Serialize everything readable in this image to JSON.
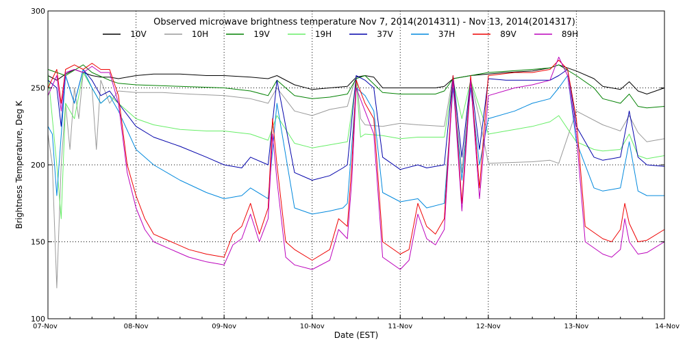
{
  "chart_data": {
    "type": "line",
    "title": "Observed microwave brightness temperature Nov  7, 2014(2014311) - Nov 13, 2014(2014317)",
    "xlabel": "Date (EST)",
    "ylabel": "Brightness Temperature, Deg K",
    "xlim": [
      0,
      7
    ],
    "ylim": [
      100,
      300
    ],
    "x_ticks": [
      {
        "value": 0,
        "label": "07-Nov"
      },
      {
        "value": 1,
        "label": "08-Nov"
      },
      {
        "value": 2,
        "label": "09-Nov"
      },
      {
        "value": 3,
        "label": "10-Nov"
      },
      {
        "value": 4,
        "label": "11-Nov"
      },
      {
        "value": 5,
        "label": "12-Nov"
      },
      {
        "value": 6,
        "label": "13-Nov"
      },
      {
        "value": 7,
        "label": "14-Nov"
      }
    ],
    "y_ticks": [
      100,
      150,
      200,
      250,
      300
    ],
    "grid": true,
    "legend_position": "top",
    "series": [
      {
        "name": "10V",
        "color": "#000000",
        "x": [
          0,
          0.1,
          0.2,
          0.3,
          0.4,
          0.5,
          0.6,
          0.7,
          0.8,
          1.0,
          1.2,
          1.5,
          1.8,
          2.0,
          2.3,
          2.5,
          2.6,
          2.8,
          3.0,
          3.2,
          3.4,
          3.5,
          3.6,
          3.7,
          3.8,
          4.0,
          4.2,
          4.4,
          4.5,
          4.6,
          4.8,
          5.0,
          5.2,
          5.5,
          5.7,
          5.8,
          6.0,
          6.2,
          6.3,
          6.5,
          6.6,
          6.7,
          6.8,
          7.0
        ],
        "y": [
          258,
          255,
          259,
          262,
          260,
          258,
          257,
          257,
          256,
          258,
          259,
          259,
          258,
          258,
          257,
          256,
          258,
          252,
          249,
          250,
          251,
          257,
          258,
          257,
          250,
          250,
          250,
          250,
          251,
          256,
          258,
          259,
          260,
          261,
          263,
          265,
          261,
          256,
          251,
          249,
          254,
          248,
          246,
          250
        ]
      },
      {
        "name": "10H",
        "color": "#999999",
        "x": [
          0,
          0.05,
          0.1,
          0.15,
          0.2,
          0.25,
          0.3,
          0.35,
          0.4,
          0.5,
          0.55,
          0.6,
          0.7,
          0.8,
          1.0,
          1.3,
          1.6,
          2.0,
          2.3,
          2.5,
          2.6,
          2.8,
          3.0,
          3.2,
          3.4,
          3.5,
          3.55,
          3.6,
          3.8,
          4.0,
          4.2,
          4.5,
          4.6,
          4.7,
          4.8,
          4.9,
          5.0,
          5.5,
          5.7,
          5.8,
          6.0,
          6.3,
          6.5,
          6.6,
          6.7,
          6.8,
          7.0
        ],
        "y": [
          220,
          200,
          120,
          200,
          240,
          210,
          250,
          230,
          260,
          250,
          210,
          255,
          240,
          248,
          247,
          247,
          246,
          245,
          243,
          240,
          250,
          235,
          232,
          236,
          238,
          258,
          230,
          226,
          225,
          227,
          226,
          225,
          258,
          195,
          255,
          230,
          201,
          202,
          203,
          201,
          235,
          226,
          222,
          232,
          221,
          215,
          217
        ]
      },
      {
        "name": "19V",
        "color": "#008000",
        "x": [
          0,
          0.2,
          0.4,
          0.5,
          0.7,
          0.8,
          1.0,
          1.5,
          2.0,
          2.3,
          2.5,
          2.6,
          2.8,
          3.0,
          3.2,
          3.4,
          3.5,
          3.6,
          3.8,
          4.0,
          4.2,
          4.4,
          4.5,
          4.6,
          4.8,
          5.0,
          5.5,
          5.7,
          5.8,
          6.0,
          6.2,
          6.3,
          6.5,
          6.6,
          6.7,
          6.8,
          7.0
        ],
        "y": [
          262,
          258,
          265,
          260,
          255,
          253,
          252,
          251,
          250,
          248,
          245,
          255,
          245,
          243,
          244,
          246,
          256,
          258,
          247,
          246,
          246,
          246,
          248,
          256,
          258,
          260,
          262,
          263,
          265,
          258,
          250,
          243,
          240,
          246,
          238,
          237,
          238
        ]
      },
      {
        "name": "19H",
        "color": "#66ee66",
        "x": [
          0,
          0.1,
          0.15,
          0.2,
          0.3,
          0.4,
          0.5,
          0.6,
          0.7,
          0.8,
          1.0,
          1.2,
          1.5,
          1.8,
          2.0,
          2.3,
          2.5,
          2.6,
          2.8,
          3.0,
          3.2,
          3.4,
          3.5,
          3.55,
          3.6,
          3.8,
          4.0,
          4.2,
          4.5,
          4.6,
          4.7,
          4.8,
          5.0,
          5.2,
          5.5,
          5.7,
          5.8,
          6.0,
          6.2,
          6.3,
          6.5,
          6.6,
          6.7,
          6.8,
          7.0
        ],
        "y": [
          260,
          200,
          165,
          240,
          230,
          260,
          250,
          240,
          245,
          240,
          230,
          226,
          223,
          222,
          222,
          220,
          216,
          232,
          214,
          211,
          213,
          215,
          255,
          218,
          220,
          219,
          217,
          218,
          218,
          255,
          230,
          255,
          220,
          222,
          225,
          228,
          232,
          215,
          210,
          209,
          210,
          220,
          206,
          204,
          206
        ]
      },
      {
        "name": "37V",
        "color": "#0000aa",
        "x": [
          0,
          0.1,
          0.15,
          0.2,
          0.3,
          0.4,
          0.5,
          0.6,
          0.7,
          0.8,
          1.0,
          1.2,
          1.5,
          1.8,
          2.0,
          2.2,
          2.3,
          2.5,
          2.6,
          2.8,
          3.0,
          3.2,
          3.35,
          3.4,
          3.5,
          3.6,
          3.7,
          3.8,
          4.0,
          4.2,
          4.3,
          4.5,
          4.6,
          4.7,
          4.8,
          4.9,
          5.0,
          5.2,
          5.5,
          5.7,
          5.8,
          5.9,
          6.0,
          6.2,
          6.3,
          6.5,
          6.6,
          6.7,
          6.8,
          7.0
        ],
        "y": [
          255,
          250,
          225,
          258,
          240,
          262,
          255,
          245,
          248,
          240,
          225,
          218,
          212,
          205,
          200,
          198,
          205,
          200,
          255,
          195,
          190,
          193,
          198,
          200,
          258,
          255,
          250,
          205,
          197,
          200,
          198,
          200,
          258,
          205,
          256,
          210,
          256,
          255,
          255,
          255,
          258,
          262,
          225,
          205,
          203,
          205,
          235,
          205,
          200,
          199
        ]
      },
      {
        "name": "37H",
        "color": "#0088dd",
        "x": [
          0,
          0.05,
          0.1,
          0.2,
          0.3,
          0.4,
          0.5,
          0.6,
          0.7,
          0.8,
          1.0,
          1.2,
          1.5,
          1.8,
          2.0,
          2.2,
          2.3,
          2.5,
          2.6,
          2.8,
          3.0,
          3.2,
          3.35,
          3.4,
          3.5,
          3.6,
          3.7,
          3.8,
          4.0,
          4.2,
          4.3,
          4.5,
          4.6,
          4.7,
          4.8,
          4.9,
          5.0,
          5.3,
          5.5,
          5.7,
          5.8,
          5.9,
          6.0,
          6.2,
          6.3,
          6.5,
          6.6,
          6.7,
          6.8,
          7.0
        ],
        "y": [
          225,
          220,
          180,
          258,
          240,
          262,
          250,
          240,
          245,
          235,
          210,
          200,
          190,
          182,
          178,
          180,
          185,
          178,
          240,
          172,
          168,
          170,
          172,
          175,
          250,
          245,
          235,
          182,
          176,
          178,
          172,
          175,
          250,
          190,
          250,
          200,
          230,
          235,
          240,
          243,
          250,
          258,
          215,
          185,
          183,
          185,
          215,
          183,
          180,
          180
        ]
      },
      {
        "name": "89V",
        "color": "#ee0000",
        "x": [
          0,
          0.1,
          0.15,
          0.2,
          0.3,
          0.4,
          0.5,
          0.6,
          0.7,
          0.8,
          0.9,
          1.0,
          1.1,
          1.2,
          1.4,
          1.6,
          1.8,
          2.0,
          2.1,
          2.2,
          2.3,
          2.4,
          2.5,
          2.55,
          2.6,
          2.7,
          2.8,
          3.0,
          3.2,
          3.3,
          3.4,
          3.45,
          3.5,
          3.6,
          3.7,
          3.8,
          4.0,
          4.1,
          4.2,
          4.3,
          4.4,
          4.5,
          4.6,
          4.7,
          4.8,
          4.9,
          5.0,
          5.3,
          5.5,
          5.7,
          5.8,
          5.9,
          6.0,
          6.1,
          6.3,
          6.4,
          6.5,
          6.55,
          6.6,
          6.7,
          6.8,
          7.0
        ],
        "y": [
          250,
          262,
          240,
          262,
          265,
          262,
          266,
          262,
          262,
          245,
          200,
          180,
          165,
          155,
          150,
          145,
          142,
          140,
          155,
          160,
          175,
          155,
          172,
          230,
          200,
          150,
          145,
          138,
          145,
          165,
          160,
          200,
          255,
          240,
          230,
          150,
          142,
          145,
          175,
          160,
          155,
          165,
          258,
          175,
          258,
          185,
          258,
          260,
          260,
          262,
          268,
          262,
          230,
          160,
          152,
          150,
          158,
          175,
          162,
          150,
          151,
          158
        ]
      },
      {
        "name": "89H",
        "color": "#bb00bb",
        "x": [
          0,
          0.1,
          0.15,
          0.2,
          0.3,
          0.4,
          0.5,
          0.6,
          0.7,
          0.8,
          0.9,
          1.0,
          1.1,
          1.2,
          1.4,
          1.6,
          1.8,
          2.0,
          2.1,
          2.2,
          2.3,
          2.4,
          2.5,
          2.55,
          2.6,
          2.7,
          2.8,
          3.0,
          3.2,
          3.3,
          3.4,
          3.45,
          3.5,
          3.6,
          3.7,
          3.8,
          4.0,
          4.1,
          4.2,
          4.3,
          4.4,
          4.5,
          4.6,
          4.7,
          4.8,
          4.9,
          5.0,
          5.3,
          5.5,
          5.7,
          5.8,
          5.9,
          6.0,
          6.1,
          6.3,
          6.4,
          6.5,
          6.55,
          6.6,
          6.7,
          6.8,
          7.0
        ],
        "y": [
          245,
          258,
          235,
          260,
          262,
          260,
          264,
          260,
          260,
          240,
          195,
          172,
          158,
          150,
          145,
          140,
          137,
          135,
          148,
          152,
          168,
          150,
          165,
          220,
          190,
          140,
          135,
          132,
          138,
          158,
          152,
          190,
          250,
          235,
          220,
          140,
          132,
          138,
          168,
          152,
          148,
          158,
          255,
          170,
          255,
          178,
          245,
          250,
          252,
          255,
          270,
          258,
          220,
          150,
          142,
          140,
          145,
          165,
          150,
          142,
          143,
          150
        ]
      }
    ]
  }
}
